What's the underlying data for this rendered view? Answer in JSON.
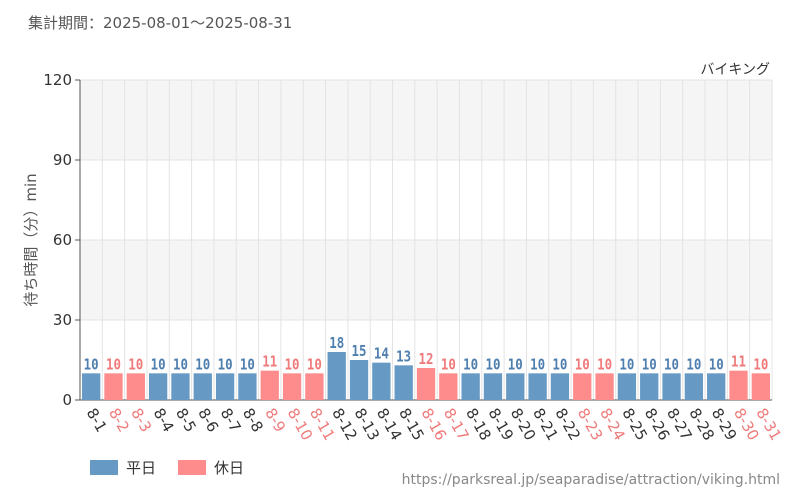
{
  "header": {
    "period_label": "集計期間：2025-08-01～2025-08-31"
  },
  "colors": {
    "weekday": "#6699c4",
    "holiday": "#ff8c8c",
    "weekday_label": "#4f7faf",
    "holiday_label": "#f07a7a"
  },
  "legend": {
    "weekday": "平日",
    "holiday": "休日"
  },
  "source": "https://parksreal.jp/seaparadise/attraction/viking.html",
  "chart_data": {
    "type": "bar",
    "title": "バイキング",
    "xlabel": "",
    "ylabel": "待ち時間（分）min",
    "ylim": [
      0,
      120
    ],
    "yticks": [
      0,
      30,
      60,
      90,
      120
    ],
    "grid": true,
    "legend_position": "bottom-left",
    "categories": [
      "8-1",
      "8-2",
      "8-3",
      "8-4",
      "8-5",
      "8-6",
      "8-7",
      "8-8",
      "8-9",
      "8-10",
      "8-11",
      "8-12",
      "8-13",
      "8-14",
      "8-15",
      "8-16",
      "8-17",
      "8-18",
      "8-19",
      "8-20",
      "8-21",
      "8-22",
      "8-23",
      "8-24",
      "8-25",
      "8-26",
      "8-27",
      "8-28",
      "8-29",
      "8-30",
      "8-31"
    ],
    "values": [
      10,
      10,
      10,
      10,
      10,
      10,
      10,
      10,
      11,
      10,
      10,
      18,
      15,
      14,
      13,
      12,
      10,
      10,
      10,
      10,
      10,
      10,
      10,
      10,
      10,
      10,
      10,
      10,
      10,
      11,
      10
    ],
    "day_type": [
      "weekday",
      "holiday",
      "holiday",
      "weekday",
      "weekday",
      "weekday",
      "weekday",
      "weekday",
      "holiday",
      "holiday",
      "holiday",
      "weekday",
      "weekday",
      "weekday",
      "weekday",
      "holiday",
      "holiday",
      "weekday",
      "weekday",
      "weekday",
      "weekday",
      "weekday",
      "holiday",
      "holiday",
      "weekday",
      "weekday",
      "weekday",
      "weekday",
      "weekday",
      "holiday",
      "holiday"
    ]
  }
}
